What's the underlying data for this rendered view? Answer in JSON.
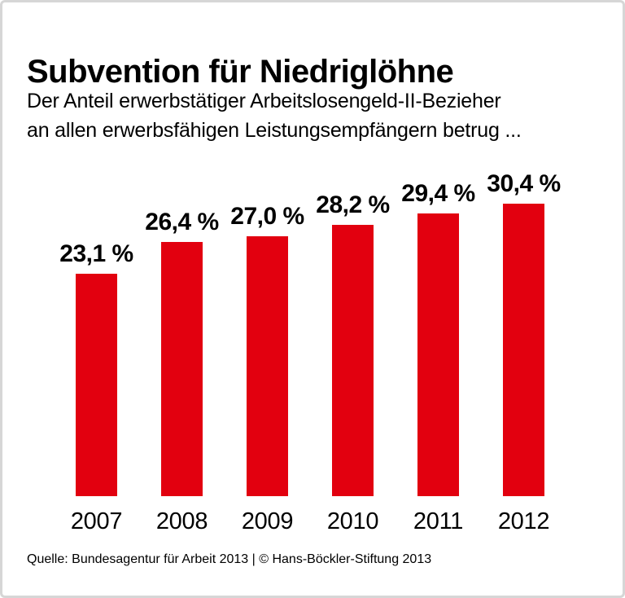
{
  "header": {
    "title": "Subvention für Niedriglöhne",
    "subtitle_line1": "Der Anteil erwerbstätiger Arbeitslosengeld-II-Bezieher",
    "subtitle_line2": "an allen erwerbsfähigen Leistungsempfängern betrug ..."
  },
  "chart_data": {
    "type": "bar",
    "title": "Subvention für Niedriglöhne",
    "categories": [
      "2007",
      "2008",
      "2009",
      "2010",
      "2011",
      "2012"
    ],
    "values": [
      23.1,
      26.4,
      27.0,
      28.2,
      29.4,
      30.4
    ],
    "value_labels": [
      "23,1 %",
      "26,4 %",
      "27,0 %",
      "28,2 %",
      "29,4 %",
      "30,4 %"
    ],
    "xlabel": "",
    "ylabel": "",
    "ylim": [
      0,
      34
    ],
    "unit": "%",
    "grid": false,
    "legend_position": "none",
    "value_label_position": "above-bar",
    "bar_color": "#e2000f"
  },
  "footer": {
    "source": "Quelle: Bundesagentur für Arbeit 2013 | © Hans-Böckler-Stiftung 2013"
  },
  "colors": {
    "bar": "#e2000f",
    "text": "#000000",
    "border": "#d6d6d6",
    "background": "#ffffff"
  }
}
